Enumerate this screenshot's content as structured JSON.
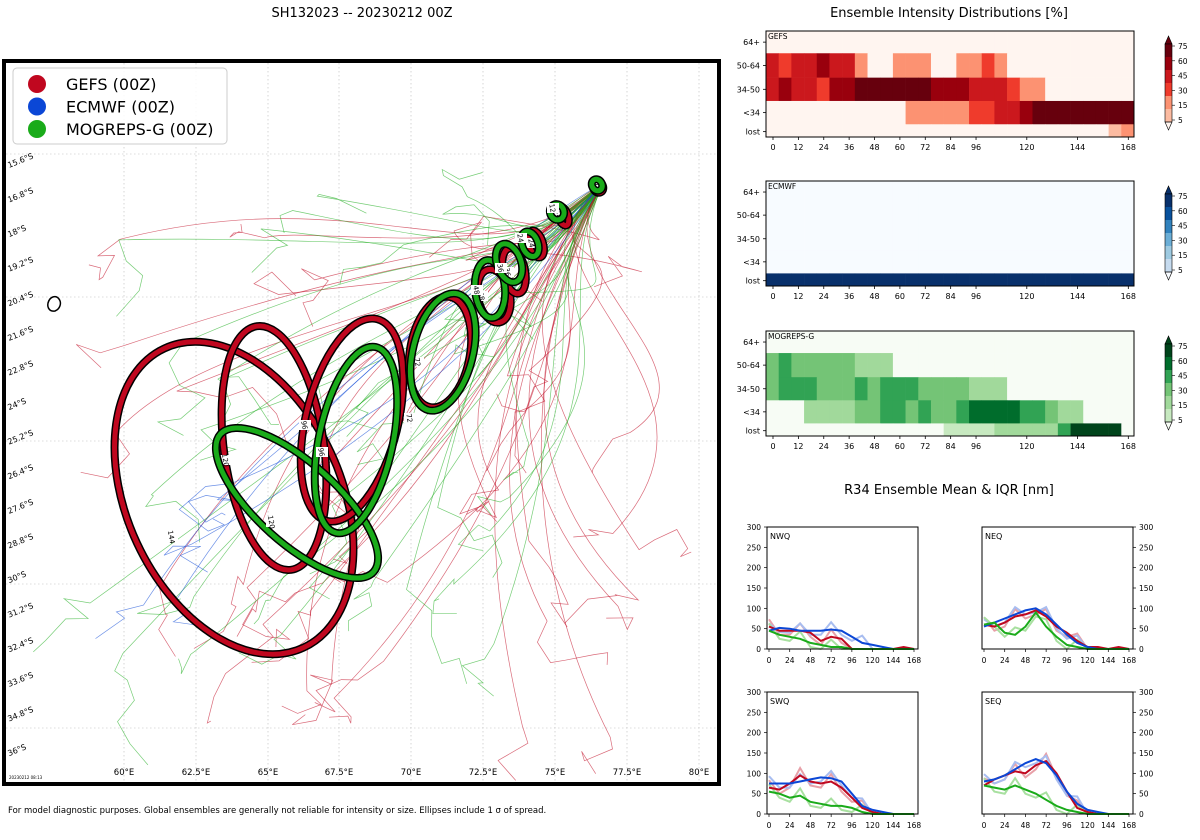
{
  "main_title": "SH132023 -- 20230212 00Z",
  "footnote": "For model diagnostic purposes. Global ensembles are generally not reliable for intensity or size. Ellipses include 1 σ of spread.",
  "map_timestamp": "20230212 08:13",
  "colors": {
    "gefs": "#c0071f",
    "ecmwf": "#0b47d6",
    "mogreps": "#1aab1a"
  },
  "legend": [
    {
      "label": "GEFS (00Z)",
      "color": "#c0071f"
    },
    {
      "label": "ECMWF (00Z)",
      "color": "#0b47d6"
    },
    {
      "label": "MOGREPS-G (00Z)",
      "color": "#1aab1a"
    }
  ],
  "map": {
    "lon_ticks": [
      "60°E",
      "62.5°E",
      "65°E",
      "67.5°E",
      "70°E",
      "72.5°E",
      "75°E",
      "77.5°E",
      "80°E"
    ],
    "lat_ticks": [
      "15.6°S",
      "16.8°S",
      "18°S",
      "19.2°S",
      "20.4°S",
      "21.6°S",
      "22.8°S",
      "24°S",
      "25.2°S",
      "26.4°S",
      "27.6°S",
      "28.8°S",
      "30°S",
      "31.2°S",
      "32.4°S",
      "33.6°S",
      "34.8°S",
      "36°S"
    ]
  },
  "ellipse_labels": {
    "gefs": [
      "0",
      "12",
      "24",
      "36",
      "48",
      "72",
      "96",
      "120",
      "144"
    ],
    "mogreps": [
      "0",
      "12",
      "24",
      "36",
      "48",
      "72",
      "96",
      "120",
      "96"
    ]
  },
  "intensity": {
    "title": "Ensemble Intensity Distributions [%]",
    "rows": [
      "64+",
      "50-64",
      "34-50",
      "<34",
      "lost"
    ],
    "xticks": [
      "0",
      "12",
      "24",
      "36",
      "48",
      "60",
      "72",
      "84",
      "96",
      "120",
      "144",
      "168"
    ],
    "cbar_ticks": [
      "75",
      "60",
      "45",
      "30",
      "15",
      "5"
    ]
  },
  "chart_data": [
    {
      "type": "heatmap",
      "name": "GEFS",
      "color": "#c0071f",
      "rows": [
        "64+",
        "50-64",
        "34-50",
        "<34",
        "lost"
      ],
      "columns_hours_step": 6,
      "values": [
        [
          0,
          0,
          0,
          0,
          0,
          0,
          0,
          0,
          0,
          0,
          0,
          0,
          0,
          0,
          0,
          0,
          0,
          0,
          0,
          0,
          0,
          0,
          0,
          0,
          0,
          0,
          0,
          0,
          0
        ],
        [
          45,
          30,
          45,
          45,
          60,
          45,
          45,
          10,
          0,
          0,
          10,
          10,
          10,
          0,
          0,
          10,
          10,
          30,
          10,
          0,
          0,
          0,
          0,
          0,
          0,
          0,
          0,
          0,
          0
        ],
        [
          45,
          60,
          45,
          45,
          30,
          60,
          60,
          75,
          75,
          75,
          75,
          75,
          75,
          60,
          60,
          60,
          45,
          45,
          45,
          30,
          10,
          10,
          0,
          0,
          0,
          0,
          0,
          0,
          0
        ],
        [
          0,
          0,
          0,
          0,
          0,
          0,
          0,
          0,
          0,
          0,
          0,
          10,
          10,
          10,
          20,
          20,
          30,
          30,
          45,
          45,
          60,
          75,
          75,
          75,
          75,
          75,
          75,
          75,
          75
        ],
        [
          0,
          0,
          0,
          0,
          0,
          0,
          0,
          0,
          0,
          0,
          0,
          0,
          0,
          0,
          0,
          0,
          0,
          0,
          0,
          0,
          0,
          0,
          0,
          0,
          0,
          0,
          0,
          5,
          20
        ]
      ]
    },
    {
      "type": "heatmap",
      "name": "ECMWF",
      "color": "#0b47d6",
      "rows": [
        "64+",
        "50-64",
        "34-50",
        "<34",
        "lost"
      ],
      "columns_hours_step": 6,
      "values": [
        [
          0,
          0,
          0,
          0,
          0,
          0,
          0,
          0,
          0,
          0,
          0,
          0,
          0,
          0,
          0,
          0,
          0,
          0,
          0,
          0,
          0,
          0,
          0,
          0,
          0,
          0,
          0,
          0,
          0
        ],
        [
          0,
          0,
          0,
          0,
          0,
          0,
          0,
          0,
          0,
          0,
          0,
          0,
          0,
          0,
          0,
          0,
          0,
          0,
          0,
          0,
          0,
          0,
          0,
          0,
          0,
          0,
          0,
          0,
          0
        ],
        [
          0,
          0,
          0,
          0,
          0,
          0,
          0,
          0,
          0,
          0,
          0,
          0,
          0,
          0,
          0,
          0,
          0,
          0,
          0,
          0,
          0,
          0,
          0,
          0,
          0,
          0,
          0,
          0,
          0
        ],
        [
          0,
          0,
          0,
          0,
          0,
          0,
          0,
          0,
          0,
          0,
          0,
          0,
          0,
          0,
          0,
          0,
          0,
          0,
          0,
          0,
          0,
          0,
          0,
          0,
          0,
          0,
          0,
          0,
          0
        ],
        [
          100,
          100,
          100,
          100,
          100,
          100,
          100,
          100,
          100,
          100,
          100,
          100,
          100,
          100,
          100,
          100,
          100,
          100,
          100,
          100,
          100,
          100,
          100,
          100,
          100,
          100,
          100,
          100,
          100
        ]
      ]
    },
    {
      "type": "heatmap",
      "name": "MOGREPS-G",
      "color": "#1aab1a",
      "rows": [
        "64+",
        "50-64",
        "34-50",
        "<34",
        "lost"
      ],
      "columns_hours_step": 6,
      "values": [
        [
          0,
          0,
          0,
          0,
          0,
          0,
          0,
          0,
          0,
          0,
          0,
          0,
          0,
          0,
          0,
          0,
          0,
          0,
          0,
          0,
          0,
          0,
          0,
          0,
          0,
          0,
          0,
          0,
          0
        ],
        [
          30,
          45,
          30,
          30,
          30,
          30,
          30,
          10,
          10,
          10,
          0,
          0,
          0,
          0,
          0,
          0,
          0,
          0,
          0,
          0,
          0,
          0,
          0,
          0,
          0,
          0,
          0,
          0,
          0
        ],
        [
          30,
          45,
          45,
          45,
          30,
          30,
          30,
          45,
          30,
          45,
          45,
          45,
          30,
          30,
          30,
          30,
          20,
          10,
          10,
          0,
          0,
          0,
          0,
          0,
          0,
          0,
          0,
          0,
          0
        ],
        [
          0,
          0,
          0,
          10,
          10,
          10,
          20,
          30,
          30,
          45,
          45,
          30,
          45,
          30,
          30,
          45,
          60,
          60,
          60,
          60,
          45,
          45,
          30,
          10,
          10,
          0,
          0,
          0,
          0
        ],
        [
          0,
          0,
          0,
          0,
          0,
          0,
          0,
          0,
          0,
          0,
          0,
          0,
          0,
          0,
          5,
          5,
          5,
          5,
          10,
          10,
          10,
          20,
          20,
          45,
          75,
          75,
          75,
          75,
          0
        ]
      ]
    },
    {
      "type": "line",
      "name": "NWQ",
      "title": "R34 Ensemble Mean & IQR [nm]",
      "x": [
        0,
        12,
        24,
        36,
        48,
        60,
        72,
        84,
        96,
        108,
        120,
        132,
        144,
        156,
        168
      ],
      "ylim": [
        0,
        300
      ],
      "xticks": [
        "0",
        "24",
        "48",
        "72",
        "96",
        "120",
        "144",
        "168"
      ],
      "yticks": [
        "0",
        "50",
        "100",
        "150",
        "200",
        "250",
        "300"
      ],
      "series": [
        {
          "name": "GEFS",
          "values": [
            55,
            45,
            45,
            45,
            40,
            20,
            30,
            25,
            0,
            0,
            0,
            0,
            0,
            5,
            0
          ]
        },
        {
          "name": "ECMWF",
          "values": [
            45,
            52,
            50,
            45,
            45,
            45,
            48,
            45,
            30,
            15,
            10,
            5,
            0,
            0,
            0
          ]
        },
        {
          "name": "MOGREPS-G",
          "values": [
            45,
            35,
            30,
            25,
            15,
            10,
            5,
            5,
            0,
            0,
            0,
            0,
            0,
            0,
            0
          ]
        }
      ]
    },
    {
      "type": "line",
      "name": "NEQ",
      "x": [
        0,
        12,
        24,
        36,
        48,
        60,
        72,
        84,
        96,
        108,
        120,
        132,
        144,
        156,
        168
      ],
      "ylim": [
        0,
        300
      ],
      "series": [
        {
          "name": "GEFS",
          "values": [
            60,
            55,
            65,
            80,
            85,
            95,
            80,
            55,
            40,
            20,
            5,
            5,
            0,
            5,
            0
          ]
        },
        {
          "name": "ECMWF",
          "values": [
            55,
            65,
            75,
            85,
            95,
            100,
            85,
            60,
            35,
            15,
            5,
            0,
            0,
            0,
            0
          ]
        },
        {
          "name": "MOGREPS-G",
          "values": [
            60,
            65,
            40,
            35,
            55,
            90,
            55,
            30,
            10,
            5,
            0,
            0,
            0,
            0,
            0
          ]
        }
      ]
    },
    {
      "type": "line",
      "name": "SWQ",
      "x": [
        0,
        12,
        24,
        36,
        48,
        60,
        72,
        84,
        96,
        108,
        120,
        132,
        144,
        156,
        168
      ],
      "ylim": [
        0,
        300
      ],
      "series": [
        {
          "name": "GEFS",
          "values": [
            65,
            60,
            75,
            95,
            80,
            75,
            80,
            65,
            40,
            15,
            5,
            0,
            0,
            0,
            0
          ]
        },
        {
          "name": "ECMWF",
          "values": [
            75,
            75,
            75,
            80,
            85,
            90,
            88,
            80,
            50,
            20,
            10,
            5,
            0,
            0,
            0
          ]
        },
        {
          "name": "MOGREPS-G",
          "values": [
            55,
            50,
            40,
            45,
            30,
            25,
            20,
            20,
            15,
            5,
            0,
            0,
            0,
            0,
            0
          ]
        }
      ]
    },
    {
      "type": "line",
      "name": "SEQ",
      "x": [
        0,
        12,
        24,
        36,
        48,
        60,
        72,
        84,
        96,
        108,
        120,
        132,
        144,
        156,
        168
      ],
      "ylim": [
        0,
        300
      ],
      "series": [
        {
          "name": "GEFS",
          "values": [
            70,
            85,
            95,
            105,
            100,
            120,
            130,
            100,
            55,
            15,
            5,
            0,
            0,
            0,
            0
          ]
        },
        {
          "name": "ECMWF",
          "values": [
            80,
            85,
            95,
            110,
            125,
            135,
            125,
            95,
            55,
            25,
            10,
            5,
            0,
            0,
            0
          ]
        },
        {
          "name": "MOGREPS-G",
          "values": [
            70,
            65,
            60,
            70,
            60,
            50,
            35,
            20,
            10,
            5,
            0,
            0,
            0,
            0,
            0
          ]
        }
      ]
    }
  ]
}
